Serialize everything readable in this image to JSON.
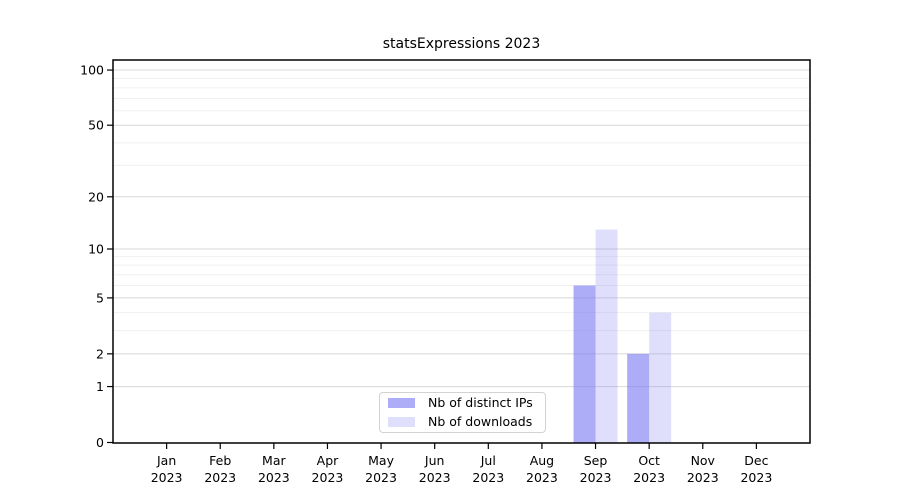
{
  "chart_data": {
    "type": "bar",
    "title": "statsExpressions 2023",
    "categories": [
      "Jan",
      "Feb",
      "Mar",
      "Apr",
      "May",
      "Jun",
      "Jul",
      "Aug",
      "Sep",
      "Oct",
      "Nov",
      "Dec"
    ],
    "year_label": "2023",
    "series": [
      {
        "name": "Nb of distinct IPs",
        "color": "#7a7af2",
        "opacity": 0.62,
        "values": [
          0,
          0,
          0,
          0,
          0,
          0,
          0,
          0,
          6,
          2,
          0,
          0
        ]
      },
      {
        "name": "Nb of downloads",
        "color": "#7a7af2",
        "opacity": 0.24,
        "values": [
          0,
          0,
          0,
          0,
          0,
          0,
          0,
          0,
          13,
          4,
          0,
          0
        ]
      }
    ],
    "xlabel": "",
    "ylabel": "",
    "y_axis": {
      "scale": "symlog",
      "major_ticks": [
        0,
        1,
        2,
        5,
        10,
        20,
        50,
        100
      ],
      "minor_ticks": [
        3,
        4,
        6,
        7,
        8,
        9,
        30,
        40,
        60,
        70,
        80,
        90
      ],
      "ylim": [
        0,
        113
      ]
    },
    "grid": true,
    "legend_position": "lower-center",
    "colors": {
      "major_grid": "#d8d8d8",
      "minor_grid": "#f0f0f0",
      "axis": "#000000"
    }
  }
}
